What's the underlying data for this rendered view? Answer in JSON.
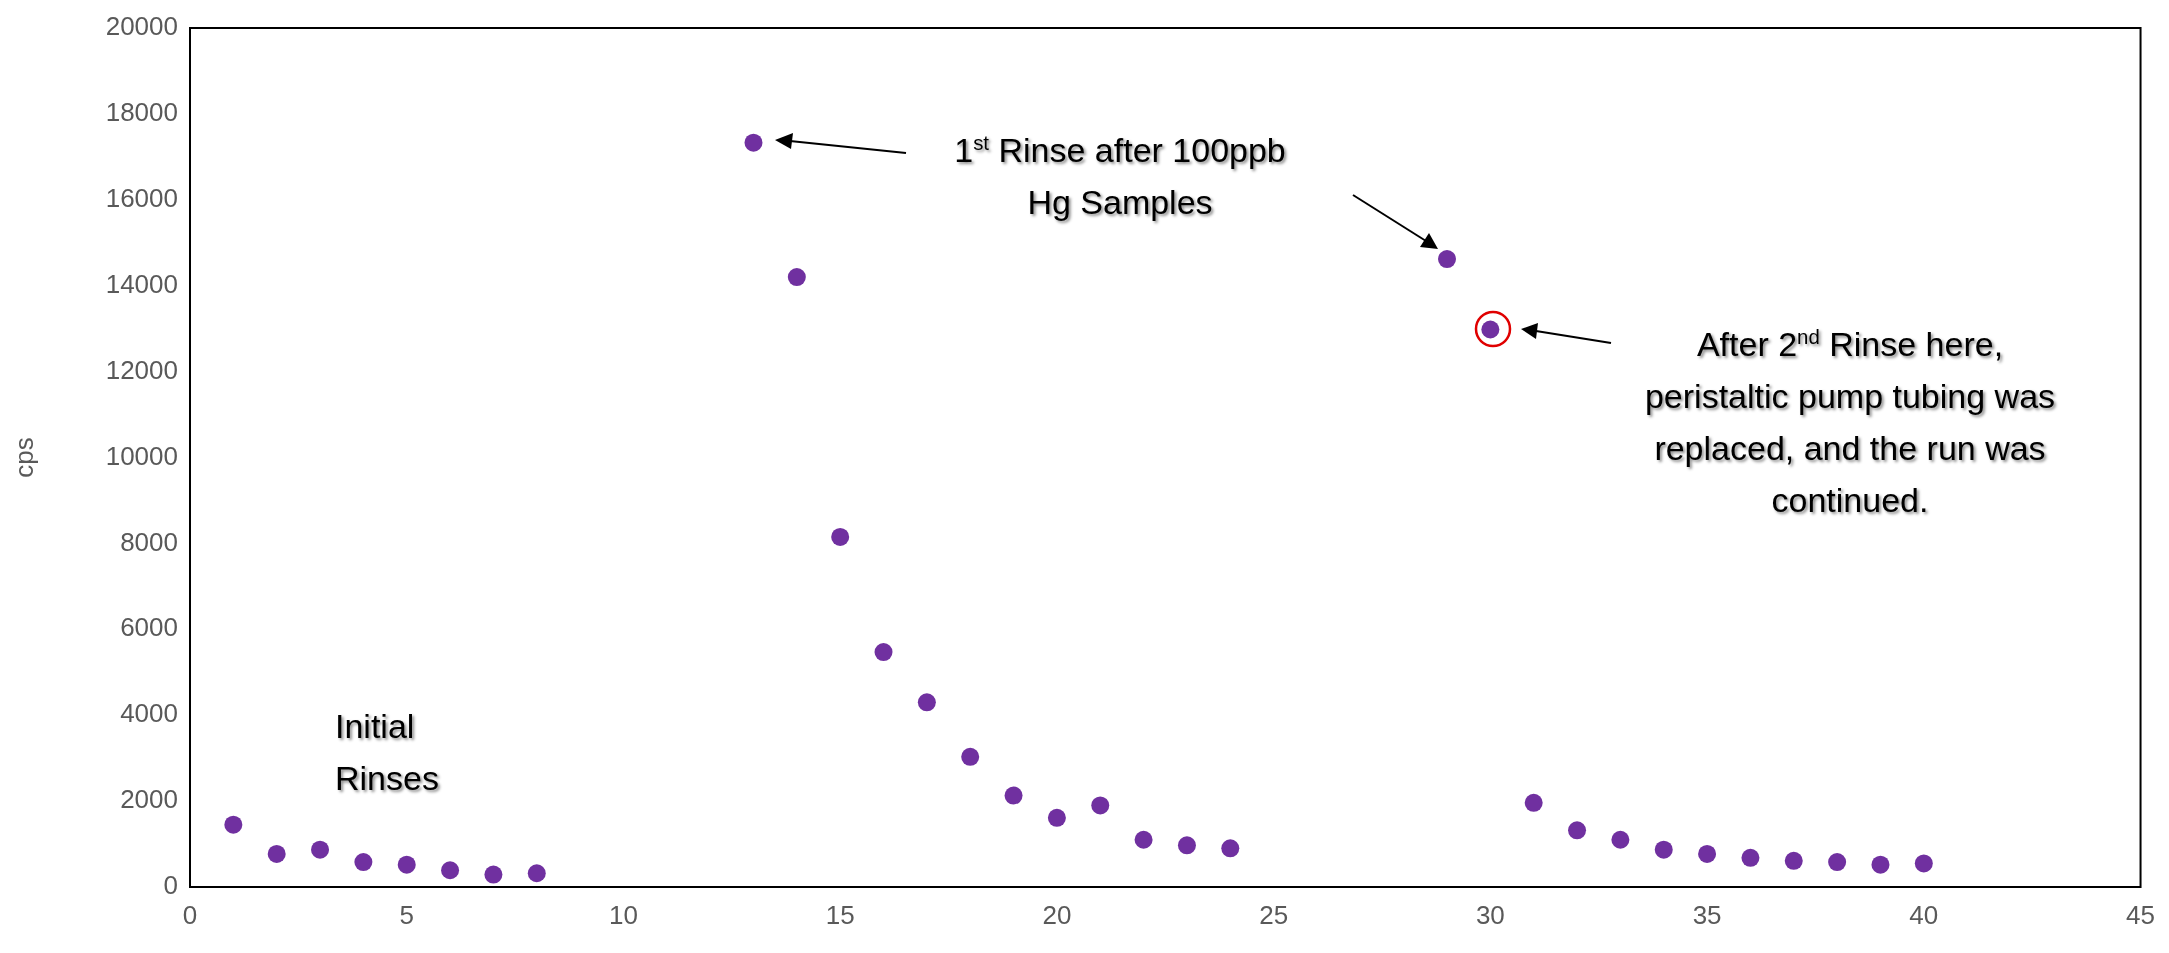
{
  "chart_data": {
    "type": "scatter",
    "ylabel": "cps",
    "x": [
      1,
      2,
      3,
      4,
      5,
      6,
      7,
      8,
      13,
      14,
      15,
      16,
      17,
      18,
      19,
      20,
      21,
      22,
      23,
      24,
      29,
      30,
      31,
      32,
      33,
      34,
      35,
      36,
      37,
      38,
      39,
      40
    ],
    "series": [
      {
        "color": "#7030a0",
        "values": [
          1450,
          770,
          870,
          580,
          520,
          390,
          290,
          320,
          17330,
          14200,
          8150,
          5470,
          4300,
          3030,
          2130,
          1610,
          1900,
          1100,
          970,
          900,
          14620,
          12980,
          1960,
          1320,
          1100,
          870,
          770,
          680,
          610,
          580,
          520,
          550
        ]
      }
    ],
    "xlim": [
      0,
      45
    ],
    "xticks": [
      0,
      5,
      10,
      15,
      20,
      25,
      30,
      35,
      40,
      45
    ],
    "ylim": [
      0,
      20000
    ],
    "yticks": [
      0,
      2000,
      4000,
      6000,
      8000,
      10000,
      12000,
      14000,
      16000,
      18000,
      20000
    ],
    "grid": false,
    "legend": false,
    "marker": "circle",
    "annotations": [
      "1$^{st}$ Rinse after 100ppb Hg Samples",
      "After  2$^{nd}$ Rinse here, peristaltic pump tubing was replaced, and the run was continued.",
      "Initial Rinses"
    ]
  }
}
